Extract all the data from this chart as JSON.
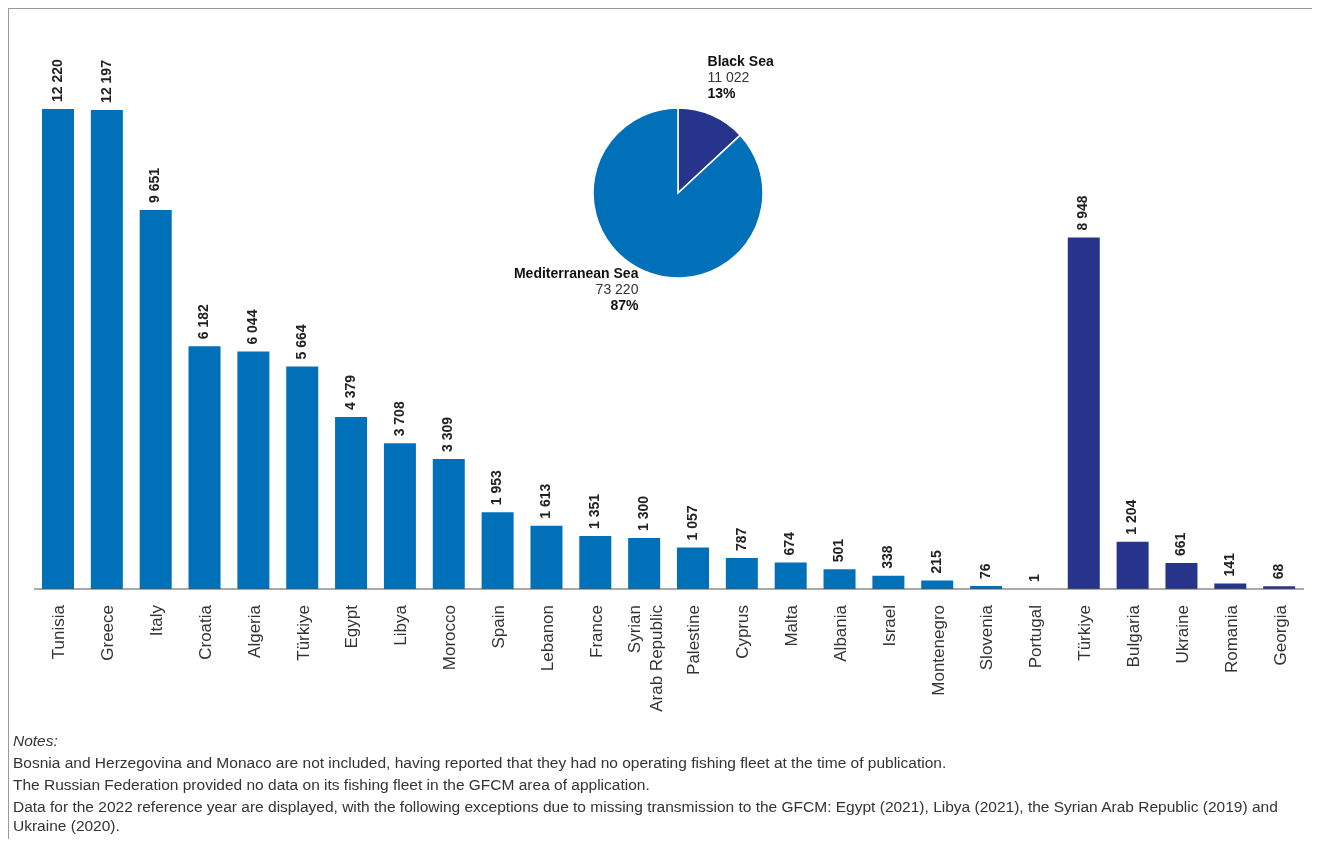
{
  "chart_data": [
    {
      "type": "bar",
      "categories": [
        "Tunisia",
        "Greece",
        "Italy",
        "Croatia",
        "Algeria",
        "Türkiye",
        "Egypt",
        "Libya",
        "Morocco",
        "Spain",
        "Lebanon",
        "France",
        "Syrian Arab Republic",
        "Palestine",
        "Cyprus",
        "Malta",
        "Albania",
        "Israel",
        "Montenegro",
        "Slovenia",
        "Portugal",
        "Türkiye",
        "Bulgaria",
        "Ukraine",
        "Romania",
        "Georgia"
      ],
      "values": [
        12220,
        12197,
        9651,
        6182,
        6044,
        5664,
        4379,
        3708,
        3309,
        1953,
        1613,
        1351,
        1300,
        1057,
        787,
        674,
        501,
        338,
        215,
        76,
        1,
        8948,
        1204,
        661,
        141,
        68
      ],
      "value_labels": [
        "12 220",
        "12 197",
        "9 651",
        "6 182",
        "6 044",
        "5 664",
        "4 379",
        "3 708",
        "3 309",
        "1 953",
        "1 613",
        "1 351",
        "1 300",
        "1 057",
        "787",
        "674",
        "501",
        "338",
        "215",
        "76",
        "1",
        "8 948",
        "1 204",
        "661",
        "141",
        "68"
      ],
      "colors": [
        "#0070b8",
        "#0070b8",
        "#0070b8",
        "#0070b8",
        "#0070b8",
        "#0070b8",
        "#0070b8",
        "#0070b8",
        "#0070b8",
        "#0070b8",
        "#0070b8",
        "#0070b8",
        "#0070b8",
        "#0070b8",
        "#0070b8",
        "#0070b8",
        "#0070b8",
        "#0070b8",
        "#0070b8",
        "#0070b8",
        "#0070b8",
        "#27348b",
        "#27348b",
        "#27348b",
        "#27348b",
        "#27348b"
      ],
      "annotations": [
        "Notes:",
        "Bosnia and Herzegovina and Monaco are not included, having reported that they had no operating fishing fleet at the time of publication.",
        "The Russian Federation provided no data on its fishing fleet in the GFCM area of application.",
        "Data for the 2022 reference year are displayed, with the following exceptions due to missing transmission to the GFCM: Egypt (2021), Libya (2021), the Syrian Arab Republic (2019) and Ukraine (2020)."
      ]
    },
    {
      "type": "pie",
      "categories": [
        "Black Sea",
        "Mediterranean Sea"
      ],
      "values": [
        11022,
        73220
      ],
      "value_labels": [
        "11 022\n13%",
        "73 220\n87%"
      ],
      "colors": [
        "#27348b",
        "#0070b8"
      ]
    }
  ]
}
